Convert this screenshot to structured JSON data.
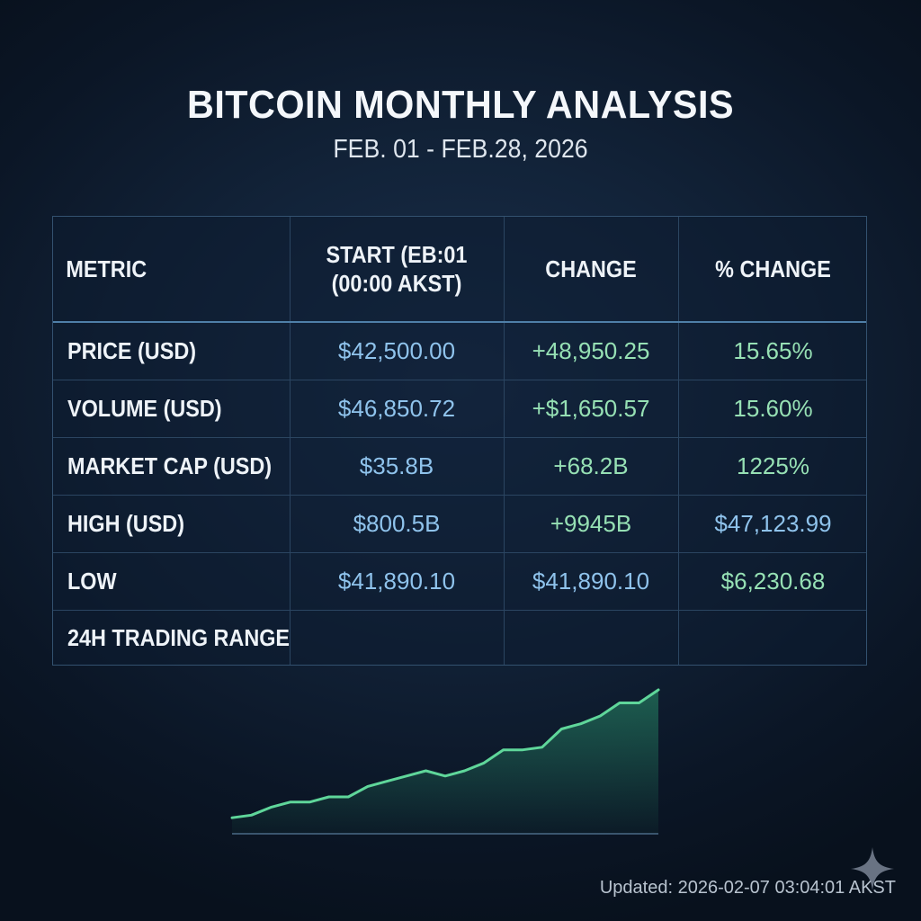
{
  "header": {
    "title": "BITCOIN MONTHLY ANALYSIS",
    "subtitle": "FEB. 01 - FEB.28, 2026"
  },
  "table": {
    "columns": [
      {
        "line1": "METRIC",
        "line2": ""
      },
      {
        "line1": "START (EB:01",
        "line2": "(00:00 AKST)"
      },
      {
        "line1": "CHANGE",
        "line2": ""
      },
      {
        "line1": "% CHANGE",
        "line2": ""
      }
    ],
    "rows": [
      {
        "metric": "PRICE (USD)",
        "start": "$42,500.00",
        "change": "+48,950.25",
        "pct": "15.65%"
      },
      {
        "metric": "VOLUME (USD)",
        "start": "$46,850.72",
        "change": "+$1,650.57",
        "pct": "15.60%"
      },
      {
        "metric": "MARKET CAP (USD)",
        "start": "$35.8B",
        "change": "+68.2B",
        "pct": "1225%"
      },
      {
        "metric": "HIGH (USD)",
        "start": "$800.5B",
        "change": "+9945B",
        "pct": "$47,123.99"
      },
      {
        "metric": "LOW",
        "start": "$41,890.10",
        "change": "$41,890.10",
        "pct": "$6,230.68"
      },
      {
        "metric": "24H TRADING RANGE",
        "start": "",
        "change": "",
        "pct": ""
      }
    ]
  },
  "sparkline": {
    "values": [
      2,
      3,
      6,
      8,
      8,
      10,
      10,
      14,
      16,
      18,
      20,
      18,
      20,
      23,
      28,
      28,
      29,
      36,
      38,
      41,
      46,
      46,
      51
    ]
  },
  "footer": {
    "updated": "Updated: 2026-02-07 03:04:01 AKST"
  },
  "colors": {
    "accent_green": "#5fd69a",
    "value_blue": "#8fc3ec",
    "value_green": "#96e0b4"
  }
}
